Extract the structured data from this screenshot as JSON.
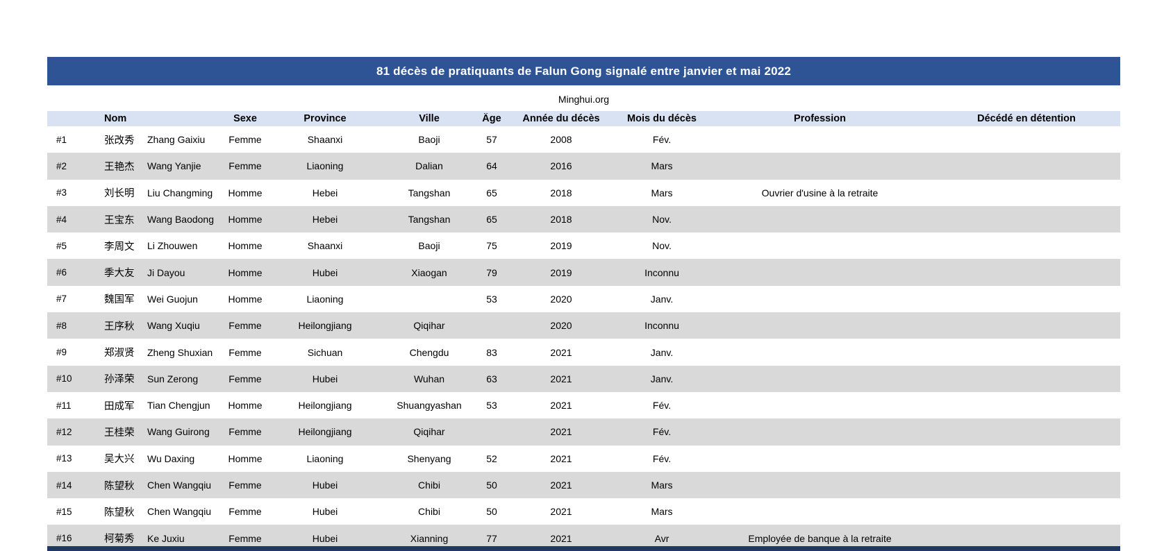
{
  "title": "81 décès de pratiquants de Falun Gong signalé entre janvier et mai 2022",
  "source": "Minghui.org",
  "colors": {
    "title_bar": "#2F5496",
    "header_bg": "#D9E2F3",
    "row_stripe": "#D9D9D9",
    "bottom_strip": "#1F3864",
    "title_text": "#FFFFFF",
    "body_text": "#000000"
  },
  "table": {
    "headers": [
      "",
      "Nom",
      "Sexe",
      "Province",
      "Ville",
      "Âge",
      "Année du décès",
      "Mois du décès",
      "Profession",
      "Décédé en détention"
    ],
    "rows": [
      {
        "num": "#1",
        "name_zh": "张改秀",
        "name_latin": "Zhang Gaixiu",
        "sex": "Femme",
        "province": "Shaanxi",
        "city": "Baoji",
        "age": "57",
        "year": "2008",
        "month": "Fév.",
        "profession": "",
        "died_in_detention": ""
      },
      {
        "num": "#2",
        "name_zh": "王艳杰",
        "name_latin": "Wang Yanjie",
        "sex": "Femme",
        "province": "Liaoning",
        "city": "Dalian",
        "age": "64",
        "year": "2016",
        "month": "Mars",
        "profession": "",
        "died_in_detention": ""
      },
      {
        "num": "#3",
        "name_zh": "刘长明",
        "name_latin": "Liu Changming",
        "sex": "Homme",
        "province": "Hebei",
        "city": "Tangshan",
        "age": "65",
        "year": "2018",
        "month": "Mars",
        "profession": "Ouvrier d'usine à la retraite",
        "died_in_detention": ""
      },
      {
        "num": "#4",
        "name_zh": "王宝东",
        "name_latin": "Wang Baodong",
        "sex": "Homme",
        "province": "Hebei",
        "city": "Tangshan",
        "age": "65",
        "year": "2018",
        "month": "Nov.",
        "profession": "",
        "died_in_detention": ""
      },
      {
        "num": "#5",
        "name_zh": "李周文",
        "name_latin": "Li Zhouwen",
        "sex": "Homme",
        "province": "Shaanxi",
        "city": "Baoji",
        "age": "75",
        "year": "2019",
        "month": "Nov.",
        "profession": "",
        "died_in_detention": ""
      },
      {
        "num": "#6",
        "name_zh": "季大友",
        "name_latin": "Ji Dayou",
        "sex": "Homme",
        "province": "Hubei",
        "city": "Xiaogan",
        "age": "79",
        "year": "2019",
        "month": "Inconnu",
        "profession": "",
        "died_in_detention": ""
      },
      {
        "num": "#7",
        "name_zh": "魏国军",
        "name_latin": "Wei Guojun",
        "sex": "Homme",
        "province": "Liaoning",
        "city": "",
        "age": "53",
        "year": "2020",
        "month": "Janv.",
        "profession": "",
        "died_in_detention": ""
      },
      {
        "num": "#8",
        "name_zh": "王序秋",
        "name_latin": "Wang Xuqiu",
        "sex": "Femme",
        "province": "Heilongjiang",
        "city": "Qiqihar",
        "age": "",
        "year": "2020",
        "month": "Inconnu",
        "profession": "",
        "died_in_detention": ""
      },
      {
        "num": "#9",
        "name_zh": "郑淑贤",
        "name_latin": "Zheng Shuxian",
        "sex": "Femme",
        "province": "Sichuan",
        "city": "Chengdu",
        "age": "83",
        "year": "2021",
        "month": "Janv.",
        "profession": "",
        "died_in_detention": ""
      },
      {
        "num": "#10",
        "name_zh": "孙泽荣",
        "name_latin": "Sun Zerong",
        "sex": "Femme",
        "province": "Hubei",
        "city": "Wuhan",
        "age": "63",
        "year": "2021",
        "month": "Janv.",
        "profession": "",
        "died_in_detention": ""
      },
      {
        "num": "#11",
        "name_zh": "田成军",
        "name_latin": "Tian Chengjun",
        "sex": "Homme",
        "province": "Heilongjiang",
        "city": "Shuangyashan",
        "age": "53",
        "year": "2021",
        "month": "Fév.",
        "profession": "",
        "died_in_detention": ""
      },
      {
        "num": "#12",
        "name_zh": "王桂荣",
        "name_latin": "Wang Guirong",
        "sex": "Femme",
        "province": "Heilongjiang",
        "city": "Qiqihar",
        "age": "",
        "year": "2021",
        "month": "Fév.",
        "profession": "",
        "died_in_detention": ""
      },
      {
        "num": "#13",
        "name_zh": "吴大兴",
        "name_latin": "Wu Daxing",
        "sex": "Homme",
        "province": "Liaoning",
        "city": "Shenyang",
        "age": "52",
        "year": "2021",
        "month": "Fév.",
        "profession": "",
        "died_in_detention": ""
      },
      {
        "num": "#14",
        "name_zh": "陈望秋",
        "name_latin": "Chen Wangqiu",
        "sex": "Femme",
        "province": "Hubei",
        "city": "Chibi",
        "age": "50",
        "year": "2021",
        "month": "Mars",
        "profession": "",
        "died_in_detention": ""
      },
      {
        "num": "#15",
        "name_zh": "陈望秋",
        "name_latin": "Chen Wangqiu",
        "sex": "Femme",
        "province": "Hubei",
        "city": "Chibi",
        "age": "50",
        "year": "2021",
        "month": "Mars",
        "profession": "",
        "died_in_detention": ""
      },
      {
        "num": "#16",
        "name_zh": "柯菊秀",
        "name_latin": "Ke Juxiu",
        "sex": "Femme",
        "province": "Hubei",
        "city": "Xianning",
        "age": "77",
        "year": "2021",
        "month": "Avr",
        "profession": "Employée de banque à la retraite",
        "died_in_detention": ""
      }
    ]
  }
}
